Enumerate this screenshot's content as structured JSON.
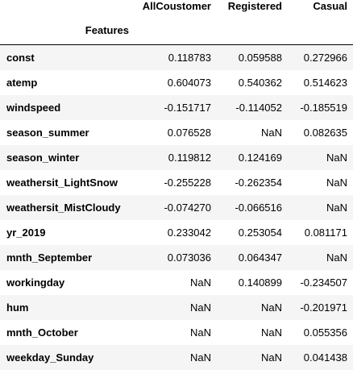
{
  "table": {
    "columns": [
      "AllCoustomer",
      "Registered",
      "Casual"
    ],
    "index_name": "Features",
    "rows": [
      {
        "feature": "const",
        "AllCoustomer": "0.118783",
        "Registered": "0.059588",
        "Casual": "0.272966"
      },
      {
        "feature": "atemp",
        "AllCoustomer": "0.604073",
        "Registered": "0.540362",
        "Casual": "0.514623"
      },
      {
        "feature": "windspeed",
        "AllCoustomer": "-0.151717",
        "Registered": "-0.114052",
        "Casual": "-0.185519"
      },
      {
        "feature": "season_summer",
        "AllCoustomer": "0.076528",
        "Registered": "NaN",
        "Casual": "0.082635"
      },
      {
        "feature": "season_winter",
        "AllCoustomer": "0.119812",
        "Registered": "0.124169",
        "Casual": "NaN"
      },
      {
        "feature": "weathersit_LightSnow",
        "AllCoustomer": "-0.255228",
        "Registered": "-0.262354",
        "Casual": "NaN"
      },
      {
        "feature": "weathersit_MistCloudy",
        "AllCoustomer": "-0.074270",
        "Registered": "-0.066516",
        "Casual": "NaN"
      },
      {
        "feature": "yr_2019",
        "AllCoustomer": "0.233042",
        "Registered": "0.253054",
        "Casual": "0.081171"
      },
      {
        "feature": "mnth_September",
        "AllCoustomer": "0.073036",
        "Registered": "0.064347",
        "Casual": "NaN"
      },
      {
        "feature": "workingday",
        "AllCoustomer": "NaN",
        "Registered": "0.140899",
        "Casual": "-0.234507"
      },
      {
        "feature": "hum",
        "AllCoustomer": "NaN",
        "Registered": "NaN",
        "Casual": "-0.201971"
      },
      {
        "feature": "mnth_October",
        "AllCoustomer": "NaN",
        "Registered": "NaN",
        "Casual": "0.055356"
      },
      {
        "feature": "weekday_Sunday",
        "AllCoustomer": "NaN",
        "Registered": "NaN",
        "Casual": "0.041438"
      }
    ]
  },
  "colors": {
    "text": "#000000",
    "odd_row_bg": "#f5f5f5",
    "even_row_bg": "#ffffff",
    "header_rule": "#000000"
  }
}
